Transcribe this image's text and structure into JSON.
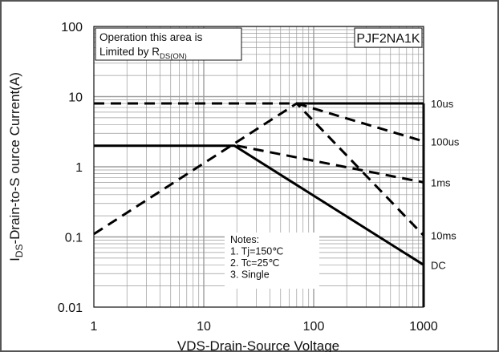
{
  "chart_data": {
    "type": "line",
    "title": "",
    "part_number": "PJF2NA1K",
    "xlabel": "VDS-Drain-Source Voltage",
    "ylabel_main": "I",
    "ylabel_sub": "DS",
    "ylabel_rest": "-Drain-to-S ource Current(A)",
    "x_scale": "log",
    "y_scale": "log",
    "xlim": [
      1,
      1000
    ],
    "ylim": [
      0.01,
      100
    ],
    "grid": true,
    "x_ticks": [
      "1",
      "10",
      "100",
      "1000"
    ],
    "y_ticks": [
      "100",
      "10",
      "1",
      "0.1",
      "0.01"
    ],
    "x_tick_values": [
      1,
      10,
      100,
      1000
    ],
    "y_tick_values": [
      100,
      10,
      1,
      0.1,
      0.01
    ],
    "annotation_line1": "Operation this area is",
    "annotation_line2_main": "Limited  by R",
    "annotation_line2_sub": "DS(ON)",
    "notes": [
      "Notes:",
      "1. Tj=150℃",
      "2. Tc=25℃",
      "3. Single"
    ],
    "series": [
      {
        "name": "10us",
        "style": "dashed",
        "x": [
          1,
          1000
        ],
        "y": [
          8,
          8
        ]
      },
      {
        "name": "100us",
        "style": "dashed",
        "x": [
          70,
          1000
        ],
        "y": [
          8,
          2.3
        ]
      },
      {
        "name": "1ms",
        "style": "dashed",
        "x": [
          20,
          1000
        ],
        "y": [
          2,
          0.6
        ]
      },
      {
        "name": "10ms",
        "style": "dashed",
        "x": [
          1,
          70,
          1000
        ],
        "y": [
          0.11,
          8,
          0.105
        ]
      },
      {
        "name": "DC",
        "style": "solid",
        "x": [
          1,
          19,
          70,
          1000
        ],
        "y": [
          2,
          2,
          0.55,
          0.04
        ]
      },
      {
        "name": "",
        "style": "solid",
        "x": [
          70,
          1000
        ],
        "y": [
          8,
          8
        ]
      },
      {
        "name": "",
        "style": "solid",
        "x": [
          1000,
          1000
        ],
        "y": [
          8,
          0.01
        ]
      }
    ],
    "series_labels": [
      {
        "text": "10us",
        "x": 1000,
        "y": 8
      },
      {
        "text": "100us",
        "x": 1000,
        "y": 2.3
      },
      {
        "text": "1ms",
        "x": 1000,
        "y": 0.6
      },
      {
        "text": "10ms",
        "x": 1000,
        "y": 0.105
      },
      {
        "text": "DC",
        "x": 1000,
        "y": 0.04
      }
    ],
    "colors": {
      "line": "#000000",
      "grid": "#9a9a9a",
      "frame": "#555555"
    }
  }
}
